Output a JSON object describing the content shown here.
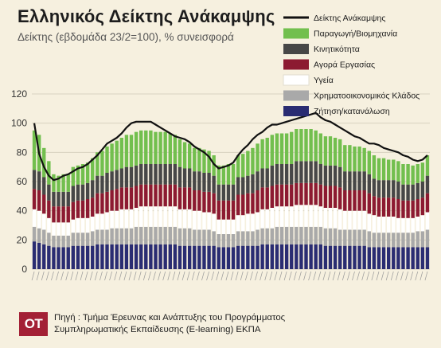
{
  "header": {
    "title": "Ελληνικός Δείκτης Ανάκαμψης",
    "subtitle": "Δείκτης (εβδομάδα 23/2=100), % συνεισφορά"
  },
  "footer": {
    "logo_text": "ΟΤ",
    "source_line1": "Πηγή : Τμήμα Έρευνας και Ανάπτυξης του Προγράμματος",
    "source_line2": "Συμπληρωματικής Εκπαίδευσης (E-learning) ΕΚΠΑ"
  },
  "colors": {
    "background": "#f6f0df",
    "grid": "#d8d2c0",
    "index_line": "#111111"
  },
  "chart_data": {
    "type": "bar",
    "stacked": true,
    "title": "Ελληνικός Δείκτης Ανάκαμψης",
    "subtitle": "Δείκτης (εβδομάδα 23/2=100), % συνεισφορά",
    "ylim": [
      0,
      120
    ],
    "yticks": [
      0,
      20,
      40,
      60,
      80,
      100,
      120
    ],
    "grid": true,
    "legend_position": "top-right",
    "x_count": 82,
    "series": [
      {
        "name": "Ζήτηση/κατανάλωση",
        "type": "bar",
        "color": "#2a2c72",
        "values": [
          19,
          18,
          17,
          16,
          15,
          15,
          15,
          15,
          16,
          16,
          16,
          16,
          16,
          17,
          17,
          17,
          17,
          17,
          17,
          17,
          17,
          17,
          17,
          17,
          17,
          17,
          17,
          17,
          17,
          17,
          16,
          16,
          16,
          16,
          16,
          16,
          16,
          16,
          15,
          15,
          15,
          15,
          16,
          16,
          16,
          16,
          16,
          17,
          17,
          17,
          17,
          17,
          17,
          17,
          17,
          17,
          17,
          17,
          17,
          17,
          16,
          16,
          16,
          16,
          16,
          16,
          16,
          16,
          16,
          15,
          15,
          15,
          15,
          15,
          15,
          15,
          15,
          15,
          15,
          15,
          15,
          15
        ]
      },
      {
        "name": "Χρηματοοικονομικός Κλάδος",
        "type": "bar",
        "color": "#a9a9a9",
        "values": [
          10,
          10,
          10,
          9,
          8,
          8,
          8,
          8,
          9,
          9,
          9,
          9,
          10,
          10,
          10,
          10,
          11,
          11,
          11,
          11,
          11,
          12,
          12,
          12,
          12,
          12,
          12,
          12,
          12,
          12,
          12,
          12,
          12,
          11,
          11,
          11,
          11,
          10,
          9,
          9,
          9,
          9,
          10,
          10,
          10,
          10,
          11,
          11,
          11,
          11,
          12,
          12,
          12,
          12,
          12,
          12,
          12,
          12,
          12,
          12,
          12,
          12,
          12,
          11,
          11,
          11,
          11,
          11,
          11,
          11,
          10,
          10,
          10,
          10,
          10,
          10,
          10,
          10,
          10,
          11,
          11,
          12
        ]
      },
      {
        "name": "Υγεία",
        "type": "bar",
        "color": "#ffffff",
        "values": [
          12,
          12,
          11,
          10,
          9,
          9,
          9,
          9,
          9,
          10,
          10,
          10,
          10,
          11,
          11,
          12,
          12,
          12,
          13,
          13,
          13,
          13,
          14,
          14,
          14,
          14,
          14,
          14,
          14,
          14,
          13,
          13,
          13,
          13,
          13,
          12,
          12,
          12,
          10,
          10,
          10,
          10,
          11,
          11,
          12,
          12,
          12,
          13,
          13,
          14,
          14,
          14,
          14,
          14,
          15,
          15,
          15,
          15,
          15,
          14,
          14,
          14,
          14,
          14,
          13,
          13,
          13,
          13,
          13,
          12,
          12,
          11,
          11,
          11,
          11,
          10,
          10,
          10,
          10,
          10,
          11,
          12
        ]
      },
      {
        "name": "Αγορά Εργασίας",
        "type": "bar",
        "color": "#8c1a31",
        "values": [
          14,
          14,
          13,
          12,
          11,
          11,
          11,
          11,
          12,
          12,
          12,
          13,
          13,
          14,
          14,
          14,
          14,
          15,
          15,
          15,
          15,
          15,
          15,
          15,
          15,
          15,
          15,
          15,
          15,
          15,
          15,
          15,
          15,
          14,
          14,
          14,
          14,
          14,
          13,
          13,
          13,
          13,
          14,
          14,
          14,
          14,
          15,
          15,
          15,
          15,
          15,
          15,
          15,
          15,
          15,
          15,
          15,
          15,
          15,
          15,
          15,
          15,
          15,
          15,
          14,
          14,
          14,
          14,
          14,
          14,
          13,
          13,
          13,
          13,
          13,
          13,
          12,
          12,
          12,
          12,
          12,
          13
        ]
      },
      {
        "name": "Κινητικότητα",
        "type": "bar",
        "color": "#474747",
        "values": [
          13,
          13,
          12,
          11,
          10,
          10,
          10,
          10,
          11,
          11,
          11,
          11,
          12,
          12,
          12,
          13,
          13,
          13,
          13,
          14,
          14,
          14,
          14,
          14,
          14,
          14,
          14,
          14,
          14,
          14,
          14,
          13,
          13,
          13,
          13,
          13,
          13,
          12,
          11,
          11,
          11,
          11,
          12,
          12,
          12,
          13,
          13,
          13,
          13,
          14,
          14,
          14,
          14,
          14,
          15,
          15,
          15,
          15,
          15,
          14,
          14,
          14,
          14,
          14,
          13,
          13,
          13,
          13,
          13,
          13,
          12,
          12,
          12,
          12,
          12,
          12,
          11,
          11,
          11,
          11,
          11,
          12
        ]
      },
      {
        "name": "Παραγωγή/Βιομηχανία",
        "type": "bar",
        "color": "#72bf4e",
        "values": [
          27,
          25,
          20,
          16,
          12,
          11,
          12,
          12,
          13,
          13,
          14,
          14,
          15,
          16,
          17,
          18,
          19,
          20,
          21,
          22,
          22,
          23,
          23,
          23,
          23,
          22,
          22,
          22,
          21,
          20,
          19,
          18,
          17,
          16,
          16,
          16,
          15,
          14,
          13,
          13,
          14,
          14,
          15,
          16,
          17,
          18,
          19,
          20,
          21,
          21,
          21,
          21,
          21,
          22,
          22,
          22,
          22,
          22,
          21,
          21,
          20,
          20,
          19,
          19,
          18,
          18,
          17,
          17,
          16,
          16,
          16,
          15,
          15,
          14,
          14,
          14,
          14,
          14,
          13,
          13,
          13,
          14
        ]
      },
      {
        "name": "Δείκτης Ανάκαμψης",
        "type": "line",
        "color": "#111111",
        "values": [
          100,
          79,
          70,
          64,
          61,
          62,
          64,
          65,
          67,
          69,
          70,
          72,
          75,
          78,
          82,
          86,
          88,
          90,
          93,
          97,
          100,
          101,
          101,
          101,
          101,
          99,
          97,
          95,
          93,
          91,
          90,
          89,
          87,
          84,
          82,
          80,
          77,
          72,
          69,
          70,
          71,
          73,
          78,
          82,
          85,
          89,
          92,
          94,
          97,
          99,
          99,
          100,
          101,
          102,
          103,
          104,
          105,
          106,
          107,
          104,
          102,
          101,
          99,
          97,
          95,
          93,
          91,
          90,
          88,
          86,
          86,
          85,
          83,
          82,
          81,
          80,
          78,
          77,
          75,
          74,
          75,
          78
        ]
      }
    ]
  }
}
